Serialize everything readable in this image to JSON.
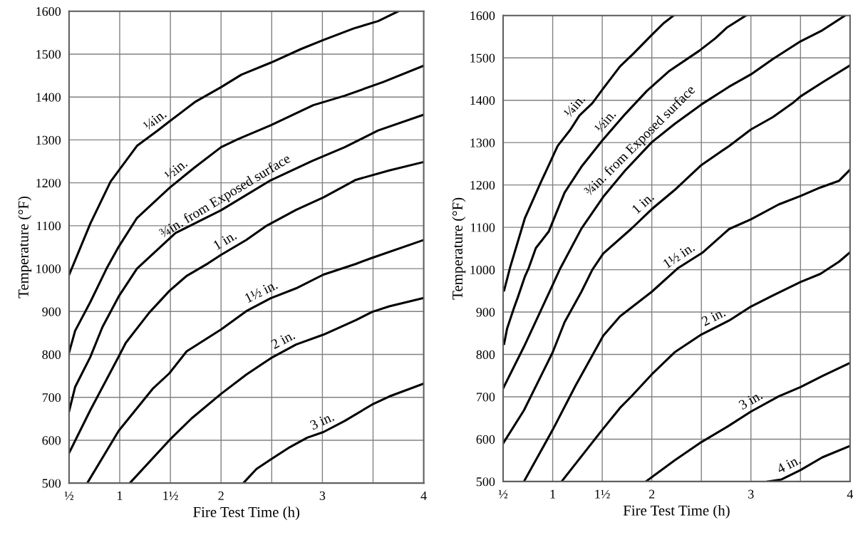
{
  "chart_data": [
    {
      "type": "line",
      "xlabel": "Fire Test Time (h)",
      "ylabel": "Temperature (°F)",
      "xlim": [
        0.5,
        4
      ],
      "ylim": [
        500,
        1600
      ],
      "xticks": [
        {
          "value": 0.5,
          "label": "½"
        },
        1,
        {
          "value": 1.5,
          "label": "1½"
        },
        2,
        {
          "value": 2.5,
          "label": null
        },
        3,
        {
          "value": 3.5,
          "label": null
        },
        4
      ],
      "yticks": [
        500,
        600,
        700,
        800,
        900,
        1000,
        1100,
        1200,
        1300,
        1400,
        1500,
        1600
      ],
      "grid": true,
      "line_style": "solid",
      "marker": "none",
      "series": [
        {
          "color": "#000000",
          "x": [
            0.5,
            0.71,
            0.91,
            1.17,
            1.37,
            1.49,
            1.74,
            2.0,
            2.2,
            2.49,
            2.79,
            3.01,
            3.31,
            3.55,
            3.75
          ],
          "values": [
            985,
            1105,
            1203,
            1286,
            1321,
            1343,
            1388,
            1423,
            1452,
            1480,
            1512,
            1533,
            1560,
            1577,
            1600
          ]
        },
        {
          "color": "#000000",
          "x": [
            0.5,
            0.56,
            0.71,
            0.87,
            0.99,
            1.17,
            1.49,
            1.74,
            2.0,
            2.17,
            2.49,
            2.91,
            3.22,
            3.6,
            3.99
          ],
          "values": [
            804,
            855,
            922,
            1000,
            1051,
            1118,
            1188,
            1236,
            1283,
            1302,
            1334,
            1381,
            1403,
            1435,
            1472
          ]
        },
        {
          "color": "#000000",
          "x": [
            0.5,
            0.56,
            0.71,
            0.83,
            0.99,
            1.17,
            1.55,
            2.0,
            2.49,
            2.9,
            3.22,
            3.55,
            3.99
          ],
          "values": [
            667,
            724,
            794,
            864,
            935,
            1000,
            1083,
            1136,
            1206,
            1251,
            1283,
            1322,
            1358
          ]
        },
        {
          "color": "#000000",
          "x": [
            0.5,
            0.71,
            0.99,
            1.06,
            1.29,
            1.49,
            1.66,
            1.87,
            2.0,
            2.25,
            2.45,
            2.74,
            3.01,
            3.33,
            3.66,
            3.99
          ],
          "values": [
            570,
            670,
            795,
            827,
            897,
            948,
            983,
            1012,
            1032,
            1067,
            1100,
            1137,
            1166,
            1207,
            1229,
            1248
          ]
        },
        {
          "color": "#000000",
          "x": [
            0.68,
            0.99,
            1.33,
            1.49,
            1.66,
            2.0,
            2.25,
            2.49,
            2.74,
            3.01,
            3.33,
            3.49,
            3.99
          ],
          "values": [
            500,
            622,
            721,
            756,
            807,
            858,
            901,
            931,
            954,
            986,
            1011,
            1025,
            1066
          ]
        },
        {
          "color": "#000000",
          "x": [
            1.1,
            1.49,
            1.71,
            2.0,
            2.25,
            2.49,
            2.74,
            3.01,
            3.33,
            3.49,
            3.66,
            3.99
          ],
          "values": [
            500,
            600,
            651,
            708,
            753,
            791,
            823,
            846,
            880,
            899,
            912,
            931
          ]
        },
        {
          "color": "#000000",
          "x": [
            2.22,
            2.35,
            2.49,
            2.68,
            2.85,
            3.01,
            3.22,
            3.49,
            3.66,
            3.99
          ],
          "values": [
            500,
            533,
            555,
            584,
            606,
            619,
            645,
            683,
            702,
            731
          ]
        }
      ],
      "annotations": [
        {
          "text": "¼in.",
          "x": 1.41,
          "y": 1328
        },
        {
          "text": "½in.",
          "x": 1.62,
          "y": 1213
        },
        {
          "text": "¾in. from Exposed surface",
          "x": 2.09,
          "y": 1149
        },
        {
          "text": "1 in.",
          "x": 2.09,
          "y": 1045
        },
        {
          "text": "1½ in.",
          "x": 2.44,
          "y": 925
        },
        {
          "text": "2 in.",
          "x": 2.66,
          "y": 813
        },
        {
          "text": "3 in.",
          "x": 3.04,
          "y": 623
        }
      ]
    },
    {
      "type": "line",
      "xlabel": "Fire Test Time (h)",
      "ylabel": "Temperature (°F)",
      "xlim": [
        0.5,
        4
      ],
      "ylim": [
        500,
        1600
      ],
      "xticks": [
        {
          "value": 0.5,
          "label": "½"
        },
        1,
        {
          "value": 1.5,
          "label": "1½"
        },
        2,
        {
          "value": 2.5,
          "label": null
        },
        3,
        {
          "value": 3.5,
          "label": null
        },
        4
      ],
      "yticks": [
        500,
        600,
        700,
        800,
        900,
        1000,
        1100,
        1200,
        1300,
        1400,
        1500,
        1600
      ],
      "grid": true,
      "line_style": "solid",
      "marker": "none",
      "series": [
        {
          "color": "#000000",
          "x": [
            0.51,
            0.57,
            0.72,
            0.87,
            1.05,
            1.18,
            1.27,
            1.4,
            1.51,
            1.68,
            1.81,
            1.99,
            2.12,
            2.22
          ],
          "values": [
            951,
            1005,
            1122,
            1201,
            1292,
            1331,
            1364,
            1393,
            1428,
            1480,
            1509,
            1552,
            1582,
            1600
          ]
        },
        {
          "color": "#000000",
          "x": [
            0.51,
            0.54,
            0.61,
            0.65,
            0.72,
            0.76,
            0.83,
            0.96,
            1.12,
            1.29,
            1.5,
            1.73,
            1.95,
            2.17,
            2.48,
            2.64,
            2.76,
            2.95
          ],
          "values": [
            825,
            861,
            910,
            936,
            984,
            1005,
            1051,
            1090,
            1182,
            1243,
            1305,
            1367,
            1422,
            1468,
            1517,
            1546,
            1572,
            1600
          ]
        },
        {
          "color": "#000000",
          "x": [
            0.5,
            0.71,
            1.0,
            1.07,
            1.29,
            1.51,
            1.73,
            2.0,
            2.23,
            2.5,
            2.78,
            3.0,
            3.22,
            3.5,
            3.72,
            3.95
          ],
          "values": [
            720,
            818,
            964,
            1000,
            1097,
            1172,
            1234,
            1301,
            1344,
            1390,
            1432,
            1461,
            1497,
            1539,
            1565,
            1600
          ]
        },
        {
          "color": "#000000",
          "x": [
            0.5,
            0.71,
            1.0,
            1.12,
            1.29,
            1.4,
            1.51,
            1.79,
            2.0,
            2.23,
            2.5,
            2.78,
            3.0,
            3.22,
            3.42,
            3.5,
            3.72,
            3.99
          ],
          "values": [
            590,
            668,
            805,
            876,
            948,
            1000,
            1038,
            1096,
            1143,
            1188,
            1247,
            1292,
            1331,
            1360,
            1393,
            1409,
            1442,
            1481
          ]
        },
        {
          "color": "#000000",
          "x": [
            0.71,
            1.0,
            1.23,
            1.51,
            1.68,
            2.0,
            2.26,
            2.51,
            2.78,
            3.0,
            3.28,
            3.5,
            3.7,
            3.89,
            4.0
          ],
          "values": [
            500,
            622,
            726,
            844,
            890,
            948,
            1003,
            1040,
            1096,
            1119,
            1154,
            1174,
            1194,
            1210,
            1236
          ]
        },
        {
          "color": "#000000",
          "x": [
            1.09,
            1.5,
            1.68,
            1.79,
            2.0,
            2.23,
            2.5,
            2.78,
            3.0,
            3.22,
            3.5,
            3.7,
            3.89,
            4.0
          ],
          "values": [
            500,
            622,
            674,
            700,
            753,
            805,
            847,
            880,
            913,
            939,
            971,
            990,
            1019,
            1041
          ]
        },
        {
          "color": "#000000",
          "x": [
            1.94,
            2.23,
            2.5,
            2.78,
            3.0,
            3.28,
            3.5,
            3.72,
            4.0
          ],
          "values": [
            500,
            550,
            593,
            632,
            665,
            701,
            723,
            749,
            780
          ]
        },
        {
          "color": "#000000",
          "x": [
            3.17,
            3.31,
            3.5,
            3.72,
            4.0
          ],
          "values": [
            500,
            505,
            527,
            557,
            584
          ]
        }
      ],
      "annotations": [
        {
          "text": "¼in.",
          "x": 1.3,
          "y": 1371
        },
        {
          "text": "½in.",
          "x": 1.61,
          "y": 1335
        },
        {
          "text": "¾in. from Exposed surface",
          "x": 1.95,
          "y": 1288
        },
        {
          "text": "1 in.",
          "x": 1.98,
          "y": 1139
        },
        {
          "text": "1½ in.",
          "x": 2.33,
          "y": 1013
        },
        {
          "text": "2 in.",
          "x": 2.67,
          "y": 867
        },
        {
          "text": "3 in.",
          "x": 3.05,
          "y": 671
        },
        {
          "text": "4 in.",
          "x": 3.43,
          "y": 519
        }
      ]
    }
  ]
}
